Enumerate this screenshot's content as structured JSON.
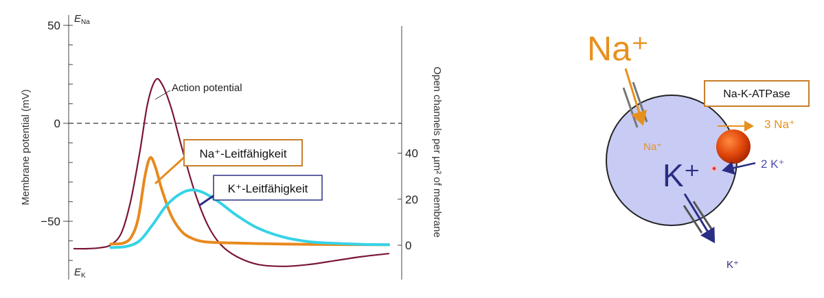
{
  "chart_data": {
    "type": "line",
    "title": "",
    "left_axis": {
      "label": "Membrane potential (mV)",
      "range": [
        -70,
        50
      ],
      "ticks": [
        {
          "value": 50,
          "label": "50"
        },
        {
          "value": 0,
          "label": "0"
        },
        {
          "value": -50,
          "label": "−50"
        }
      ],
      "ends": {
        "top_base": "E",
        "top_sub": "Na",
        "bottom_base": "E",
        "bottom_sub": "K"
      },
      "zero_line": "dashed"
    },
    "right_axis": {
      "label": "Open channels per µm² of membrane",
      "range": [
        -15,
        75
      ],
      "ticks": [
        {
          "value": 40,
          "label": "40"
        },
        {
          "value": 20,
          "label": "20"
        },
        {
          "value": 0,
          "label": "0"
        }
      ]
    },
    "series": [
      {
        "name": "Action potential",
        "color": "#7a1535",
        "axis": "left",
        "points": [
          [
            0,
            -64
          ],
          [
            0.5,
            -64
          ],
          [
            1,
            -63.5
          ],
          [
            1.4,
            -62
          ],
          [
            1.8,
            -56
          ],
          [
            2.15,
            -40
          ],
          [
            2.5,
            -15
          ],
          [
            2.8,
            10
          ],
          [
            3.1,
            22
          ],
          [
            3.35,
            20
          ],
          [
            3.7,
            8
          ],
          [
            4.1,
            -12
          ],
          [
            4.6,
            -35
          ],
          [
            5.1,
            -52
          ],
          [
            5.6,
            -62
          ],
          [
            6.2,
            -68
          ],
          [
            7,
            -72
          ],
          [
            8,
            -73
          ],
          [
            9,
            -72
          ],
          [
            10,
            -70
          ],
          [
            11,
            -68
          ],
          [
            12,
            -66.5
          ]
        ]
      },
      {
        "name": "Na⁺-Leitfähigkeit",
        "color": "#e8891e",
        "axis": "right",
        "points": [
          [
            1.4,
            0.5
          ],
          [
            1.9,
            1
          ],
          [
            2.2,
            4
          ],
          [
            2.45,
            12
          ],
          [
            2.7,
            30
          ],
          [
            2.9,
            38
          ],
          [
            3.1,
            34
          ],
          [
            3.35,
            24
          ],
          [
            3.7,
            13
          ],
          [
            4.1,
            6
          ],
          [
            4.5,
            3
          ],
          [
            5,
            1.5
          ],
          [
            6,
            1
          ],
          [
            8,
            0.5
          ],
          [
            10,
            0.3
          ],
          [
            12,
            0.2
          ]
        ]
      },
      {
        "name": "K⁺-Leitfähigkeit",
        "color": "#35d3e6",
        "axis": "right",
        "points": [
          [
            1.4,
            -1
          ],
          [
            2,
            -0.5
          ],
          [
            2.5,
            2
          ],
          [
            3,
            9
          ],
          [
            3.5,
            17
          ],
          [
            4,
            22
          ],
          [
            4.45,
            24
          ],
          [
            4.9,
            23
          ],
          [
            5.5,
            19
          ],
          [
            6.2,
            13
          ],
          [
            7,
            7.5
          ],
          [
            8,
            3.5
          ],
          [
            9,
            1.5
          ],
          [
            10,
            0.8
          ],
          [
            11,
            0.4
          ],
          [
            12,
            0.2
          ]
        ]
      }
    ],
    "annotations": [
      {
        "text": "Action potential",
        "series": 0
      },
      {
        "text": "Na⁺-Leitfähigkeit",
        "series": 1,
        "boxed": true
      },
      {
        "text": "K⁺-Leitfähigkeit",
        "series": 2,
        "boxed": true
      }
    ]
  },
  "diagram": {
    "ions": {
      "na_outside": "Na⁺",
      "na_inside": "Na⁺",
      "k_inside": "K⁺",
      "k_outside": "K⁺"
    },
    "pump": {
      "label": "Na-K-ATPase",
      "out_label": "3 Na⁺",
      "in_label": "2 K⁺"
    },
    "colors": {
      "sodium": "#e8901e",
      "potassium": "#2a2d84",
      "cell_fill": "#c8ccf4",
      "pump": "#d63200",
      "pump_box_border": "#c77d2a",
      "channel": "#777777"
    }
  }
}
